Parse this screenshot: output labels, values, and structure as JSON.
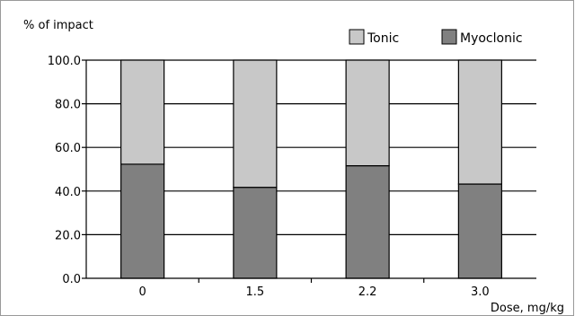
{
  "chart_data": {
    "type": "bar",
    "stacked": true,
    "ylabel": "% of impact",
    "xlabel": "Dose, mg/kg",
    "categories": [
      "0",
      "1.5",
      "2.2",
      "3.0"
    ],
    "series": [
      {
        "name": "Myoclonic",
        "color": "#808080",
        "values": [
          52.3,
          41.7,
          51.6,
          43.2
        ]
      },
      {
        "name": "Tonic",
        "color": "#c8c8c8",
        "values": [
          47.7,
          58.3,
          48.4,
          56.8
        ]
      }
    ],
    "ylim": [
      0,
      100
    ],
    "yticks": [
      "0.0",
      "20.0",
      "40.0",
      "60.0",
      "80.0",
      "100.0"
    ],
    "grid": true,
    "legend_position": "top-right"
  }
}
